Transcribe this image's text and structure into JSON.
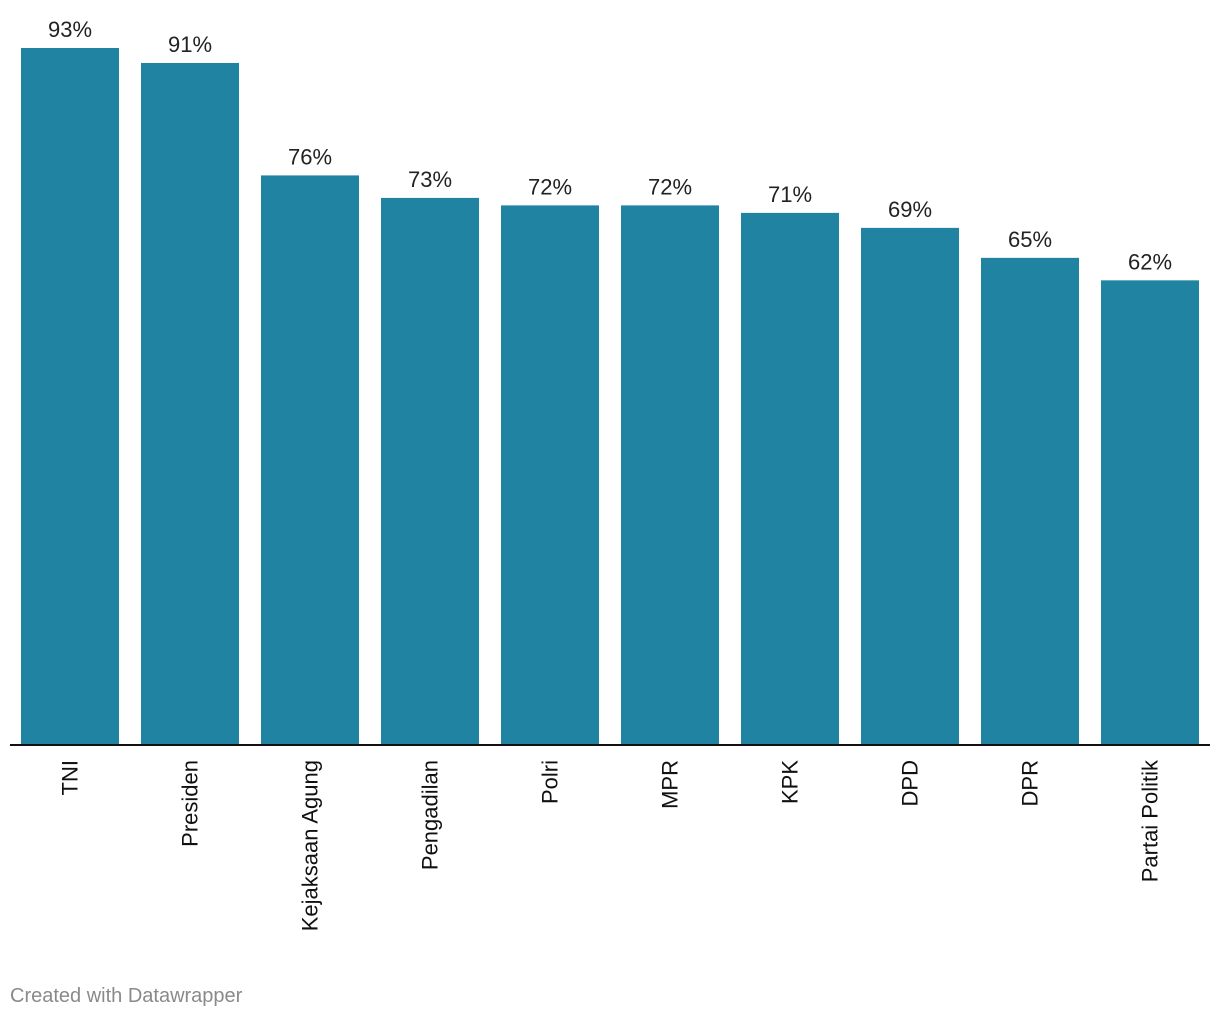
{
  "chart_data": {
    "type": "bar",
    "categories": [
      "TNI",
      "Presiden",
      "Kejaksaan Agung",
      "Pengadilan",
      "Polri",
      "MPR",
      "KPK",
      "DPD",
      "DPR",
      "Partai Politik"
    ],
    "values": [
      93,
      91,
      76,
      73,
      72,
      72,
      71,
      69,
      65,
      62
    ],
    "value_labels": [
      "93%",
      "91%",
      "76%",
      "73%",
      "72%",
      "72%",
      "71%",
      "69%",
      "65%",
      "62%"
    ],
    "title": "",
    "xlabel": "",
    "ylabel": "",
    "ylim": [
      0,
      93
    ],
    "grid": false,
    "bar_color": "#1f83a1"
  },
  "footer": {
    "credit": "Created with Datawrapper"
  }
}
